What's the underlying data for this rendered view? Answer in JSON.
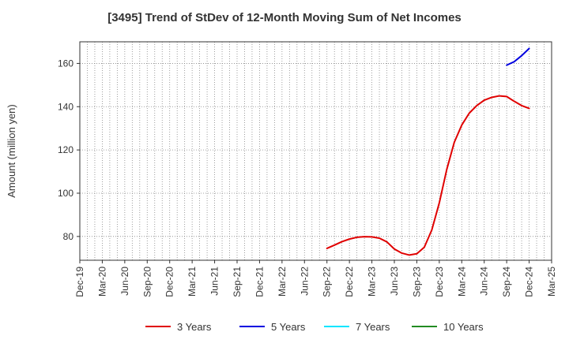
{
  "chart_data": {
    "type": "line",
    "title": "[3495]  Trend of StDev of 12-Month Moving Sum of Net Incomes",
    "ylabel": "Amount (million yen)",
    "xlabel": "",
    "ylim": [
      69,
      170
    ],
    "yticks": [
      80,
      100,
      120,
      140,
      160
    ],
    "x_tick_labels": [
      "Dec-19",
      "Mar-20",
      "Jun-20",
      "Sep-20",
      "Dec-20",
      "Mar-21",
      "Jun-21",
      "Sep-21",
      "Dec-21",
      "Mar-22",
      "Jun-22",
      "Sep-22",
      "Dec-22",
      "Mar-23",
      "Jun-23",
      "Sep-23",
      "Dec-23",
      "Mar-24",
      "Jun-24",
      "Sep-24",
      "Dec-24",
      "Mar-25"
    ],
    "grid": true,
    "legend_position": "bottom",
    "series": [
      {
        "name": "3 Years",
        "color": "#e00000",
        "x": [
          "Sep-22",
          "Oct-22",
          "Nov-22",
          "Dec-22",
          "Jan-23",
          "Feb-23",
          "Mar-23",
          "Apr-23",
          "May-23",
          "Jun-23",
          "Jul-23",
          "Aug-23",
          "Sep-23",
          "Oct-23",
          "Nov-23",
          "Dec-23",
          "Jan-24",
          "Feb-24",
          "Mar-24",
          "Apr-24",
          "May-24",
          "Jun-24",
          "Jul-24",
          "Aug-24",
          "Sep-24",
          "Oct-24",
          "Nov-24",
          "Dec-24"
        ],
        "values": [
          74.5,
          76.0,
          77.6,
          78.8,
          79.6,
          79.9,
          79.8,
          79.2,
          77.5,
          74.2,
          72.3,
          71.4,
          72.0,
          75.0,
          83.0,
          95.5,
          111.0,
          123.5,
          131.5,
          137.0,
          140.5,
          143.0,
          144.3,
          145.0,
          144.7,
          142.5,
          140.5,
          139.2
        ]
      },
      {
        "name": "5 Years",
        "color": "#0000e0",
        "x": [
          "Sep-24",
          "Oct-24",
          "Nov-24",
          "Dec-24"
        ],
        "values": [
          159.2,
          160.8,
          163.6,
          166.9
        ]
      },
      {
        "name": "7 Years",
        "color": "#00e5ff",
        "x": [],
        "values": []
      },
      {
        "name": "10 Years",
        "color": "#228b22",
        "x": [],
        "values": []
      }
    ]
  }
}
